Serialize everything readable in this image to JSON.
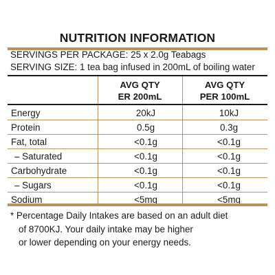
{
  "title": "NUTRITION INFORMATION",
  "servings_per_package": "SERVINGS PER PACKAGE: 25 x 2.0g Teabags",
  "serving_size": "SERVING SIZE: 1 tea bag infused in 200mL of boiling water",
  "columns": {
    "col1_line1": "AVG QTY",
    "col1_line2": "ER 200mL",
    "col2_line1": "AVG QTY",
    "col2_line2": "PER 100mL"
  },
  "rows": [
    {
      "name": "Energy",
      "per_serving": "20kJ",
      "per_100": "10kJ"
    },
    {
      "name": "Protein",
      "per_serving": "0.5g",
      "per_100": "0.3g"
    },
    {
      "name": "Fat, total",
      "per_serving": "<0.1g",
      "per_100": "<0.1g"
    },
    {
      "name": "– Saturated",
      "per_serving": "<0.1g",
      "per_100": "<0.1g"
    },
    {
      "name": "Carbohydrate",
      "per_serving": "<0.1g",
      "per_100": "<0.1g"
    },
    {
      "name": "– Sugars",
      "per_serving": "<0.1g",
      "per_100": "<0.1g"
    },
    {
      "name": "Sodium",
      "per_serving": "<5mg",
      "per_100": "<5mg"
    }
  ],
  "footnote": {
    "line1": "* Percentage Daily Intakes are based on an adult diet",
    "line2": "of 8700KJ. Your daily intake may be higher",
    "line3": "or lower depending on your energy needs."
  },
  "colors": {
    "accent_gold": "#b8935a",
    "text": "#1a1a1a"
  }
}
